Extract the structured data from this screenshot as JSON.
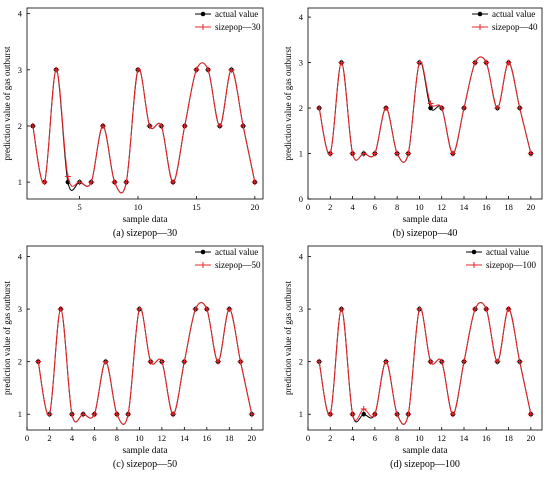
{
  "colors": {
    "actual": "#000000",
    "predicted": "#e8262a",
    "axis": "#000000"
  },
  "chart_data": [
    {
      "type": "line",
      "caption": "(a) sizepop—30",
      "xlabel": "sample data",
      "ylabel": "prediction value of gas outburst",
      "xlim": [
        0.5,
        20.7
      ],
      "ylim": [
        0.7,
        4.1
      ],
      "xticks": [
        5,
        10,
        15,
        20
      ],
      "xtick_labels": [
        "5",
        "10",
        "15",
        "20"
      ],
      "yticks": [
        1,
        2,
        3,
        4
      ],
      "ytick_labels": [
        "1",
        "2",
        "3",
        "4"
      ],
      "legend_position": "top-right",
      "x": [
        1,
        2,
        3,
        4,
        5,
        6,
        7,
        8,
        9,
        10,
        11,
        12,
        13,
        14,
        15,
        16,
        17,
        18,
        19,
        20
      ],
      "series": [
        {
          "name": "actual value",
          "marker": "circle",
          "values": [
            2,
            1,
            3,
            1,
            1,
            1,
            2,
            1,
            1,
            3,
            2,
            2,
            1,
            2,
            3,
            3,
            2,
            3,
            2,
            1
          ]
        },
        {
          "name": "sizepop—30",
          "marker": "plus",
          "values": [
            2,
            1,
            3,
            1.1,
            1,
            1,
            2,
            1,
            1,
            3,
            2,
            2,
            1,
            2,
            3,
            3,
            2,
            3,
            2,
            1
          ]
        }
      ]
    },
    {
      "type": "line",
      "caption": "(b) sizepop—40",
      "xlabel": "sample data",
      "ylabel": "prediction value of gas outburst",
      "xlim": [
        0,
        21
      ],
      "ylim": [
        0,
        4.2
      ],
      "xticks": [
        0,
        2,
        4,
        6,
        8,
        10,
        12,
        14,
        16,
        18,
        20
      ],
      "xtick_labels": [
        "0",
        "2",
        "4",
        "6",
        "8",
        "10",
        "12",
        "14",
        "16",
        "18",
        "20"
      ],
      "yticks": [
        0,
        1,
        2,
        3,
        4
      ],
      "ytick_labels": [
        "0",
        "1",
        "2",
        "3",
        "4"
      ],
      "legend_position": "top-right",
      "x": [
        1,
        2,
        3,
        4,
        5,
        6,
        7,
        8,
        9,
        10,
        11,
        12,
        13,
        14,
        15,
        16,
        17,
        18,
        19,
        20
      ],
      "series": [
        {
          "name": "actual value",
          "marker": "circle",
          "values": [
            2,
            1,
            3,
            1,
            1,
            1,
            2,
            1,
            1,
            3,
            2,
            2,
            1,
            2,
            3,
            3,
            2,
            3,
            2,
            1
          ]
        },
        {
          "name": "sizepop—40",
          "marker": "plus",
          "values": [
            2,
            1,
            3,
            1,
            1,
            1,
            2,
            1,
            1,
            3,
            2.1,
            2,
            1,
            2,
            3,
            3,
            2,
            3,
            2,
            1
          ]
        }
      ]
    },
    {
      "type": "line",
      "caption": "(c) sizepop—50",
      "xlabel": "sample data",
      "ylabel": "prediction value of gas outburst",
      "xlim": [
        0,
        21
      ],
      "ylim": [
        0.7,
        4.2
      ],
      "xticks": [
        0,
        2,
        4,
        6,
        8,
        10,
        12,
        14,
        16,
        18,
        20
      ],
      "xtick_labels": [
        "0",
        "2",
        "4",
        "6",
        "8",
        "10",
        "12",
        "14",
        "16",
        "18",
        "20"
      ],
      "yticks": [
        1,
        2,
        3,
        4
      ],
      "ytick_labels": [
        "1",
        "2",
        "3",
        "4"
      ],
      "legend_position": "top-right",
      "x": [
        1,
        2,
        3,
        4,
        5,
        6,
        7,
        8,
        9,
        10,
        11,
        12,
        13,
        14,
        15,
        16,
        17,
        18,
        19,
        20
      ],
      "series": [
        {
          "name": "actual value",
          "marker": "circle",
          "values": [
            2,
            1,
            3,
            1,
            1,
            1,
            2,
            1,
            1,
            3,
            2,
            2,
            1,
            2,
            3,
            3,
            2,
            3,
            2,
            1
          ]
        },
        {
          "name": "sizepop—50",
          "marker": "plus",
          "values": [
            2,
            1,
            3,
            1,
            1,
            1,
            2,
            1,
            1,
            3,
            2,
            2,
            1,
            2,
            3,
            3,
            2,
            3,
            2,
            1
          ]
        }
      ]
    },
    {
      "type": "line",
      "caption": "(d) sizepop—100",
      "xlabel": "sample data",
      "ylabel": "prediction value of gas outburst",
      "xlim": [
        0,
        21
      ],
      "ylim": [
        0.7,
        4.2
      ],
      "xticks": [
        0,
        2,
        4,
        6,
        8,
        10,
        12,
        14,
        16,
        18,
        20
      ],
      "xtick_labels": [
        "0",
        "2",
        "4",
        "6",
        "8",
        "10",
        "12",
        "14",
        "16",
        "18",
        "20"
      ],
      "yticks": [
        1,
        2,
        3,
        4
      ],
      "ytick_labels": [
        "1",
        "2",
        "3",
        "4"
      ],
      "legend_position": "top-right",
      "x": [
        1,
        2,
        3,
        4,
        5,
        6,
        7,
        8,
        9,
        10,
        11,
        12,
        13,
        14,
        15,
        16,
        17,
        18,
        19,
        20
      ],
      "series": [
        {
          "name": "actual value",
          "marker": "circle",
          "values": [
            2,
            1,
            3,
            1,
            1,
            1,
            2,
            1,
            1,
            3,
            2,
            2,
            1,
            2,
            3,
            3,
            2,
            3,
            2,
            1
          ]
        },
        {
          "name": "sizepop—100",
          "marker": "plus",
          "values": [
            2,
            1,
            3,
            1,
            1.1,
            1,
            2,
            1,
            1,
            3,
            2,
            2,
            1,
            2,
            3,
            3,
            2,
            3,
            2,
            1
          ]
        }
      ]
    }
  ]
}
